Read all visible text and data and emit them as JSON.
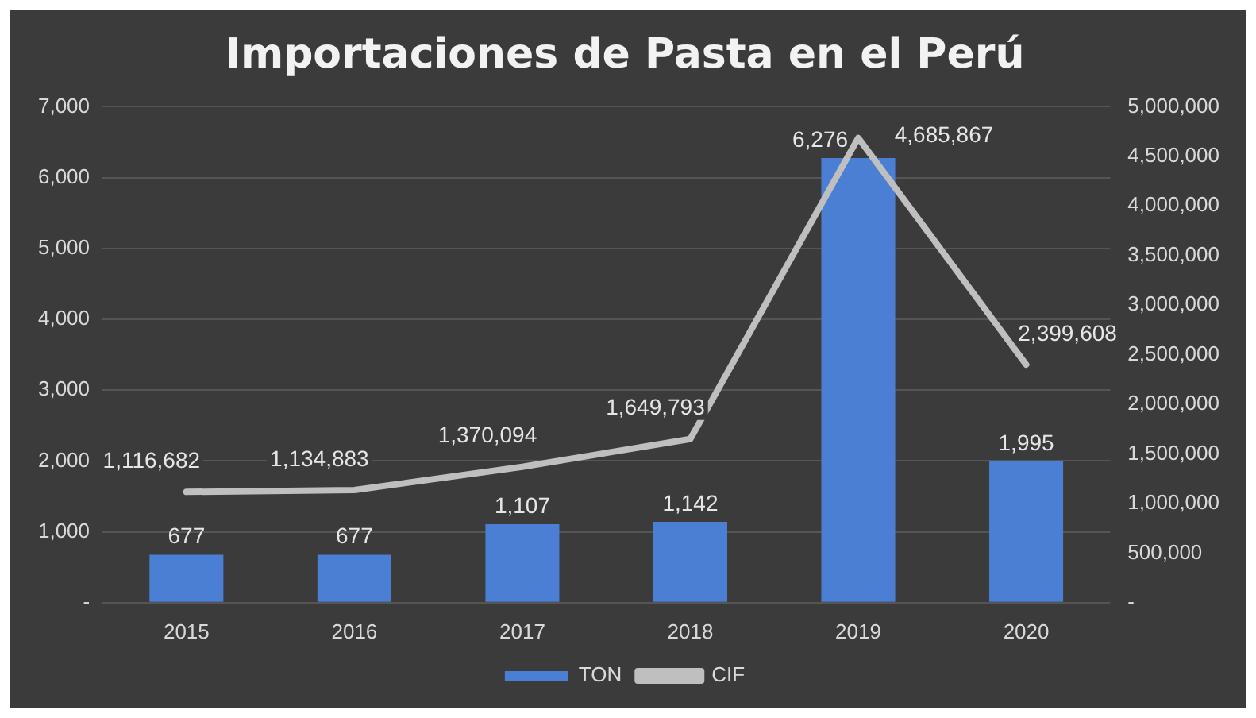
{
  "chart_data": {
    "type": "bar",
    "title": "Importaciones de Pasta en el Perú",
    "categories": [
      "2015",
      "2016",
      "2017",
      "2018",
      "2019",
      "2020"
    ],
    "series": [
      {
        "name": "TON",
        "type": "bar",
        "color": "#4a7fd4",
        "values": [
          677,
          677,
          1107,
          1142,
          6276,
          1995
        ],
        "value_labels": [
          "677",
          "677",
          "1,107",
          "1,142",
          "6,276",
          "1,995"
        ]
      },
      {
        "name": "CIF",
        "type": "line",
        "axis": "y2",
        "color": "#bfbfbf",
        "values": [
          1116682,
          1134883,
          1370094,
          1649793,
          4685867,
          2399608
        ],
        "value_labels": [
          "1,116,682",
          "1,134,883",
          "1,370,094",
          "1,649,793",
          "4,685,867",
          "2,399,608"
        ]
      }
    ],
    "ylim": [
      0,
      7000
    ],
    "yticks": [
      {
        "value": 0,
        "label": "-"
      },
      {
        "value": 1000,
        "label": "1,000"
      },
      {
        "value": 2000,
        "label": "2,000"
      },
      {
        "value": 3000,
        "label": "3,000"
      },
      {
        "value": 4000,
        "label": "4,000"
      },
      {
        "value": 5000,
        "label": "5,000"
      },
      {
        "value": 6000,
        "label": "6,000"
      },
      {
        "value": 7000,
        "label": "7,000"
      }
    ],
    "y2lim": [
      0,
      5000000
    ],
    "y2ticks": [
      {
        "value": 0,
        "label": "-"
      },
      {
        "value": 500000,
        "label": "500,000"
      },
      {
        "value": 1000000,
        "label": "1,000,000"
      },
      {
        "value": 1500000,
        "label": "1,500,000"
      },
      {
        "value": 2000000,
        "label": "2,000,000"
      },
      {
        "value": 2500000,
        "label": "2,500,000"
      },
      {
        "value": 3000000,
        "label": "3,000,000"
      },
      {
        "value": 3500000,
        "label": "3,500,000"
      },
      {
        "value": 4000000,
        "label": "4,000,000"
      },
      {
        "value": 4500000,
        "label": "4,500,000"
      },
      {
        "value": 5000000,
        "label": "5,000,000"
      }
    ],
    "grid": "y",
    "legend": "bottom"
  }
}
